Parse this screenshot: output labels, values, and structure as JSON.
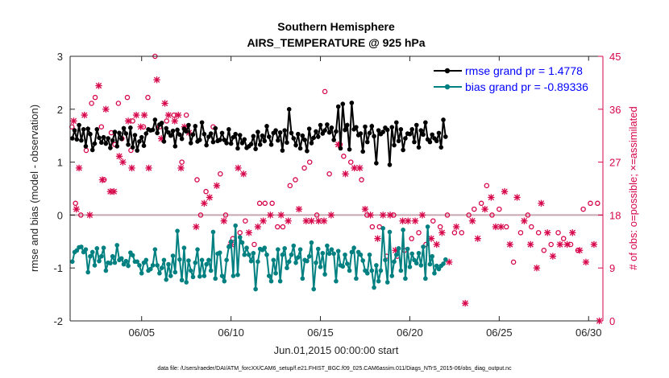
{
  "chart_data": {
    "type": "line",
    "title": "Southern Hemisphere",
    "subtitle": "AIRS_TEMPERATURE @ 925 hPa",
    "xlabel": "Jun.01,2015 00:00:00 start",
    "ylabel_left": "rmse and bias (model - observation)",
    "ylabel_right": "# of obs: o=possible; ×=assimilated",
    "footnote": "data file: /Users/raeder/DAI/ATM_forcXX/CAM6_setup/f.e21.FHIST_BGC.f09_025.CAM6assim.011/Diags_NTrS_2015-06/obs_diag_output.nc",
    "xlim": [
      1,
      30.8
    ],
    "ylim_left": [
      -2,
      3
    ],
    "ylim_right": [
      0,
      45
    ],
    "x_ticks": [
      5,
      10,
      15,
      20,
      25,
      30
    ],
    "x_tick_labels": [
      "06/05",
      "06/10",
      "06/15",
      "06/20",
      "06/25",
      "06/30"
    ],
    "y_ticks_left": [
      -2,
      -1,
      0,
      1,
      2,
      3
    ],
    "y_ticks_right": [
      0,
      9,
      18,
      27,
      36,
      45
    ],
    "x_step_days": 0.125,
    "zero_line": 0,
    "colors": {
      "rmse": "#000000",
      "bias": "#008080",
      "obs": "#d6064a",
      "zero": "#c8a8b0"
    },
    "legend": {
      "position": "top-right",
      "entries": [
        "rmse grand pr = 1.4778",
        "bias grand pr = -0.89336"
      ]
    },
    "series": [
      {
        "name": "rmse",
        "color": "#000000",
        "x_start": 1.125,
        "values": [
          1.45,
          1.6,
          1.43,
          1.7,
          1.41,
          1.62,
          1.3,
          1.63,
          1.53,
          1.23,
          1.35,
          1.62,
          1.46,
          1.37,
          1.47,
          1.35,
          1.45,
          1.27,
          1.41,
          1.57,
          1.3,
          1.55,
          1.44,
          1.64,
          1.54,
          1.33,
          1.65,
          1.28,
          1.51,
          1.22,
          1.39,
          1.47,
          1.31,
          1.54,
          1.62,
          1.6,
          1.61,
          1.8,
          1.55,
          1.71,
          1.74,
          1.39,
          1.64,
          1.56,
          1.5,
          1.59,
          1.3,
          1.61,
          1.52,
          1.44,
          1.63,
          1.58,
          1.7,
          1.36,
          1.52,
          1.68,
          1.39,
          1.42,
          1.75,
          1.53,
          1.32,
          1.48,
          1.54,
          1.38,
          1.64,
          1.4,
          1.42,
          1.55,
          1.42,
          1.36,
          1.62,
          1.35,
          1.47,
          1.53,
          1.26,
          1.51,
          1.36,
          1.43,
          1.27,
          1.3,
          1.34,
          1.49,
          1.25,
          1.57,
          1.33,
          1.5,
          1.4,
          1.68,
          1.48,
          1.33,
          1.55,
          1.6,
          1.41,
          1.56,
          1.22,
          1.6,
          1.37,
          2.0,
          1.55,
          1.45,
          1.32,
          1.53,
          1.26,
          1.5,
          1.42,
          1.21,
          1.63,
          1.36,
          1.46,
          1.58,
          1.48,
          1.7,
          1.54,
          1.6,
          1.71,
          1.56,
          1.65,
          1.42,
          1.58,
          2.05,
          1.26,
          2.1,
          1.61,
          1.7,
          1.24,
          2.12,
          1.62,
          1.66,
          1.51,
          1.54,
          1.2,
          1.67,
          1.38,
          1.55,
          1.68,
          1.49,
          0.98,
          1.6,
          1.53,
          1.57,
          1.65,
          1.61,
          0.95,
          1.66,
          1.32,
          1.75,
          1.4,
          1.62,
          1.23,
          1.45,
          1.54,
          1.53,
          1.62,
          1.38,
          1.7,
          1.28,
          1.6,
          1.52,
          1.75,
          1.43,
          1.38,
          1.52,
          1.45,
          1.4,
          1.55,
          1.28,
          1.8,
          1.48
        ]
      },
      {
        "name": "bias",
        "color": "#008080",
        "x_start": 1.125,
        "values": [
          -0.88,
          -0.7,
          -0.67,
          -0.61,
          -0.6,
          -0.7,
          -0.65,
          -1.08,
          -0.78,
          -0.7,
          -0.95,
          -0.63,
          -0.87,
          -0.78,
          -0.62,
          -1.05,
          -0.9,
          -0.91,
          -0.78,
          -0.9,
          -0.57,
          -0.85,
          -0.82,
          -0.93,
          -0.87,
          -0.96,
          -0.71,
          -0.76,
          -0.88,
          -0.88,
          -0.95,
          -1.1,
          -0.9,
          -0.85,
          -1.05,
          -1.02,
          -0.95,
          -0.65,
          -0.95,
          -1.1,
          -1.0,
          -0.85,
          -1.22,
          -0.93,
          -1.15,
          -0.77,
          -1.08,
          -0.3,
          -0.84,
          -1.23,
          -0.62,
          -1.27,
          -0.86,
          -1.05,
          -1.17,
          -0.9,
          -0.65,
          -1.16,
          -0.85,
          -1.15,
          -0.93,
          -0.85,
          -1.05,
          -0.32,
          -1.2,
          -0.73,
          -0.71,
          -1.15,
          -1.25,
          -0.85,
          -0.6,
          -0.5,
          -1.15,
          -0.2,
          -1.13,
          -0.42,
          -0.52,
          -0.75,
          -0.62,
          -0.75,
          -0.87,
          -0.72,
          -1.4,
          -0.88,
          -0.64,
          -0.66,
          -0.62,
          -0.75,
          -1.15,
          -1.25,
          -0.85,
          -1.1,
          -0.65,
          -1.25,
          -0.75,
          -0.63,
          -1.0,
          -0.88,
          -0.75,
          -0.58,
          -0.9,
          -0.8,
          -0.65,
          -1.2,
          -0.85,
          -0.87,
          -0.78,
          -0.52,
          -1.4,
          -0.9,
          -0.64,
          -0.98,
          -0.72,
          -1.12,
          -0.58,
          -0.73,
          -0.65,
          -0.73,
          -1.25,
          -0.68,
          -0.95,
          -0.97,
          -0.75,
          -0.92,
          -1.05,
          -0.7,
          -0.62,
          -1.2,
          -0.7,
          -0.75,
          -0.86,
          -1.05,
          -1.1,
          -0.75,
          -1.05,
          -1.37,
          -0.95,
          -1.25,
          -1.05,
          -0.25,
          -0.85,
          -1.27,
          -0.32,
          -1.15,
          -0.88,
          -0.75,
          -0.63,
          -1.05,
          -0.28,
          -1.2,
          -0.64,
          -0.98,
          -0.73,
          -0.85,
          -0.91,
          -0.72,
          -0.95,
          -0.6,
          -1.2,
          -0.22,
          -0.93,
          -0.78,
          -1.1,
          -0.96,
          -1.02,
          -0.96,
          -0.92,
          -0.84
        ]
      },
      {
        "name": "obs possible (o)",
        "color": "#d6064a",
        "points": [
          [
            1.1,
            33
          ],
          [
            1.3,
            20
          ],
          [
            1.6,
            18
          ],
          [
            1.9,
            29
          ],
          [
            2.2,
            37
          ],
          [
            2.4,
            38
          ],
          [
            2.75,
            33
          ],
          [
            2.9,
            24
          ],
          [
            3.3,
            32
          ],
          [
            3.5,
            30
          ],
          [
            3.7,
            37
          ],
          [
            3.9,
            31
          ],
          [
            4.2,
            38
          ],
          [
            4.4,
            29
          ],
          [
            4.5,
            34
          ],
          [
            5.1,
            33
          ],
          [
            5.35,
            38
          ],
          [
            5.75,
            45
          ],
          [
            6.0,
            33
          ],
          [
            6.4,
            34
          ],
          [
            6.8,
            35
          ],
          [
            7.25,
            27
          ],
          [
            7.5,
            35
          ],
          [
            8.1,
            24
          ],
          [
            8.3,
            18
          ],
          [
            8.6,
            22
          ],
          [
            9.0,
            33
          ],
          [
            9.4,
            25
          ],
          [
            9.7,
            18
          ],
          [
            10.1,
            14
          ],
          [
            10.5,
            15
          ],
          [
            10.8,
            17
          ],
          [
            11.3,
            13
          ],
          [
            11.6,
            20
          ],
          [
            11.9,
            20
          ],
          [
            12.3,
            20
          ],
          [
            12.6,
            16
          ],
          [
            12.9,
            16
          ],
          [
            13.3,
            23
          ],
          [
            13.6,
            24
          ],
          [
            14.1,
            26
          ],
          [
            14.4,
            27
          ],
          [
            14.8,
            18
          ],
          [
            15.25,
            39
          ],
          [
            15.5,
            25
          ],
          [
            16.1,
            30
          ],
          [
            16.3,
            28
          ],
          [
            16.7,
            27
          ],
          [
            17.3,
            24
          ],
          [
            17.6,
            18
          ],
          [
            17.9,
            16
          ],
          [
            18.3,
            16
          ],
          [
            18.7,
            11
          ],
          [
            19.1,
            18
          ],
          [
            19.3,
            11
          ],
          [
            19.7,
            12
          ],
          [
            20.1,
            14
          ],
          [
            20.5,
            15
          ],
          [
            20.9,
            13
          ],
          [
            21.3,
            17
          ],
          [
            21.7,
            16
          ],
          [
            22.1,
            18
          ],
          [
            22.5,
            15
          ],
          [
            22.9,
            15
          ],
          [
            23.3,
            18
          ],
          [
            23.6,
            19
          ],
          [
            24.0,
            20
          ],
          [
            24.3,
            23
          ],
          [
            24.6,
            18
          ],
          [
            25.0,
            19
          ],
          [
            25.4,
            16
          ],
          [
            25.8,
            10
          ],
          [
            26.2,
            15
          ],
          [
            26.6,
            18
          ],
          [
            26.8,
            16
          ],
          [
            27.2,
            15
          ],
          [
            27.5,
            12
          ],
          [
            27.9,
            13
          ],
          [
            28.3,
            15
          ],
          [
            28.6,
            14
          ],
          [
            29.0,
            13
          ],
          [
            29.4,
            12
          ],
          [
            29.7,
            19
          ],
          [
            30.1,
            20
          ],
          [
            30.5,
            20
          ]
        ]
      },
      {
        "name": "obs assimilated (×)",
        "color": "#d6064a",
        "points": [
          [
            1.2,
            34
          ],
          [
            1.35,
            19
          ],
          [
            1.5,
            26
          ],
          [
            1.8,
            35
          ],
          [
            2.1,
            18
          ],
          [
            2.6,
            40
          ],
          [
            2.8,
            24
          ],
          [
            3.0,
            36
          ],
          [
            3.25,
            22
          ],
          [
            3.45,
            22
          ],
          [
            3.75,
            28
          ],
          [
            3.95,
            27
          ],
          [
            4.25,
            34
          ],
          [
            4.45,
            26
          ],
          [
            4.7,
            35
          ],
          [
            4.95,
            33
          ],
          [
            5.15,
            35
          ],
          [
            5.4,
            26
          ],
          [
            5.85,
            41
          ],
          [
            6.1,
            31
          ],
          [
            6.3,
            37
          ],
          [
            6.5,
            35
          ],
          [
            6.85,
            34
          ],
          [
            7.05,
            35
          ],
          [
            7.2,
            26
          ],
          [
            7.4,
            33
          ],
          [
            7.65,
            32
          ],
          [
            8.05,
            16
          ],
          [
            8.5,
            20
          ],
          [
            8.8,
            21
          ],
          [
            9.2,
            23
          ],
          [
            9.6,
            17
          ],
          [
            10.0,
            13
          ],
          [
            10.4,
            26
          ],
          [
            10.7,
            25
          ],
          [
            11.0,
            15
          ],
          [
            11.5,
            16
          ],
          [
            11.8,
            17
          ],
          [
            12.2,
            18
          ],
          [
            12.8,
            18
          ],
          [
            13.2,
            17
          ],
          [
            13.8,
            19
          ],
          [
            14.2,
            17
          ],
          [
            14.5,
            17
          ],
          [
            14.9,
            17
          ],
          [
            15.2,
            17
          ],
          [
            15.6,
            18
          ],
          [
            16.0,
            30
          ],
          [
            16.4,
            25
          ],
          [
            16.9,
            26
          ],
          [
            17.2,
            26
          ],
          [
            17.5,
            19
          ],
          [
            17.8,
            18
          ],
          [
            18.2,
            14
          ],
          [
            18.5,
            18
          ],
          [
            18.9,
            18
          ],
          [
            19.2,
            12
          ],
          [
            19.6,
            17
          ],
          [
            19.9,
            17
          ],
          [
            20.3,
            17
          ],
          [
            20.7,
            18
          ],
          [
            21.2,
            14
          ],
          [
            21.5,
            13
          ],
          [
            21.8,
            15
          ],
          [
            22.2,
            10
          ],
          [
            22.6,
            16
          ],
          [
            23.1,
            3
          ],
          [
            23.5,
            17
          ],
          [
            23.8,
            14
          ],
          [
            24.2,
            19
          ],
          [
            24.55,
            21
          ],
          [
            24.8,
            16
          ],
          [
            25.1,
            16
          ],
          [
            25.3,
            22
          ],
          [
            25.6,
            13
          ],
          [
            26.0,
            21
          ],
          [
            26.4,
            17
          ],
          [
            26.75,
            13
          ],
          [
            27.1,
            9
          ],
          [
            27.35,
            20
          ],
          [
            27.7,
            15
          ],
          [
            28.0,
            11
          ],
          [
            28.4,
            13
          ],
          [
            28.8,
            13
          ],
          [
            29.1,
            15
          ],
          [
            29.5,
            12
          ],
          [
            29.85,
            10
          ],
          [
            30.3,
            13
          ],
          [
            30.6,
            0
          ]
        ]
      }
    ]
  }
}
